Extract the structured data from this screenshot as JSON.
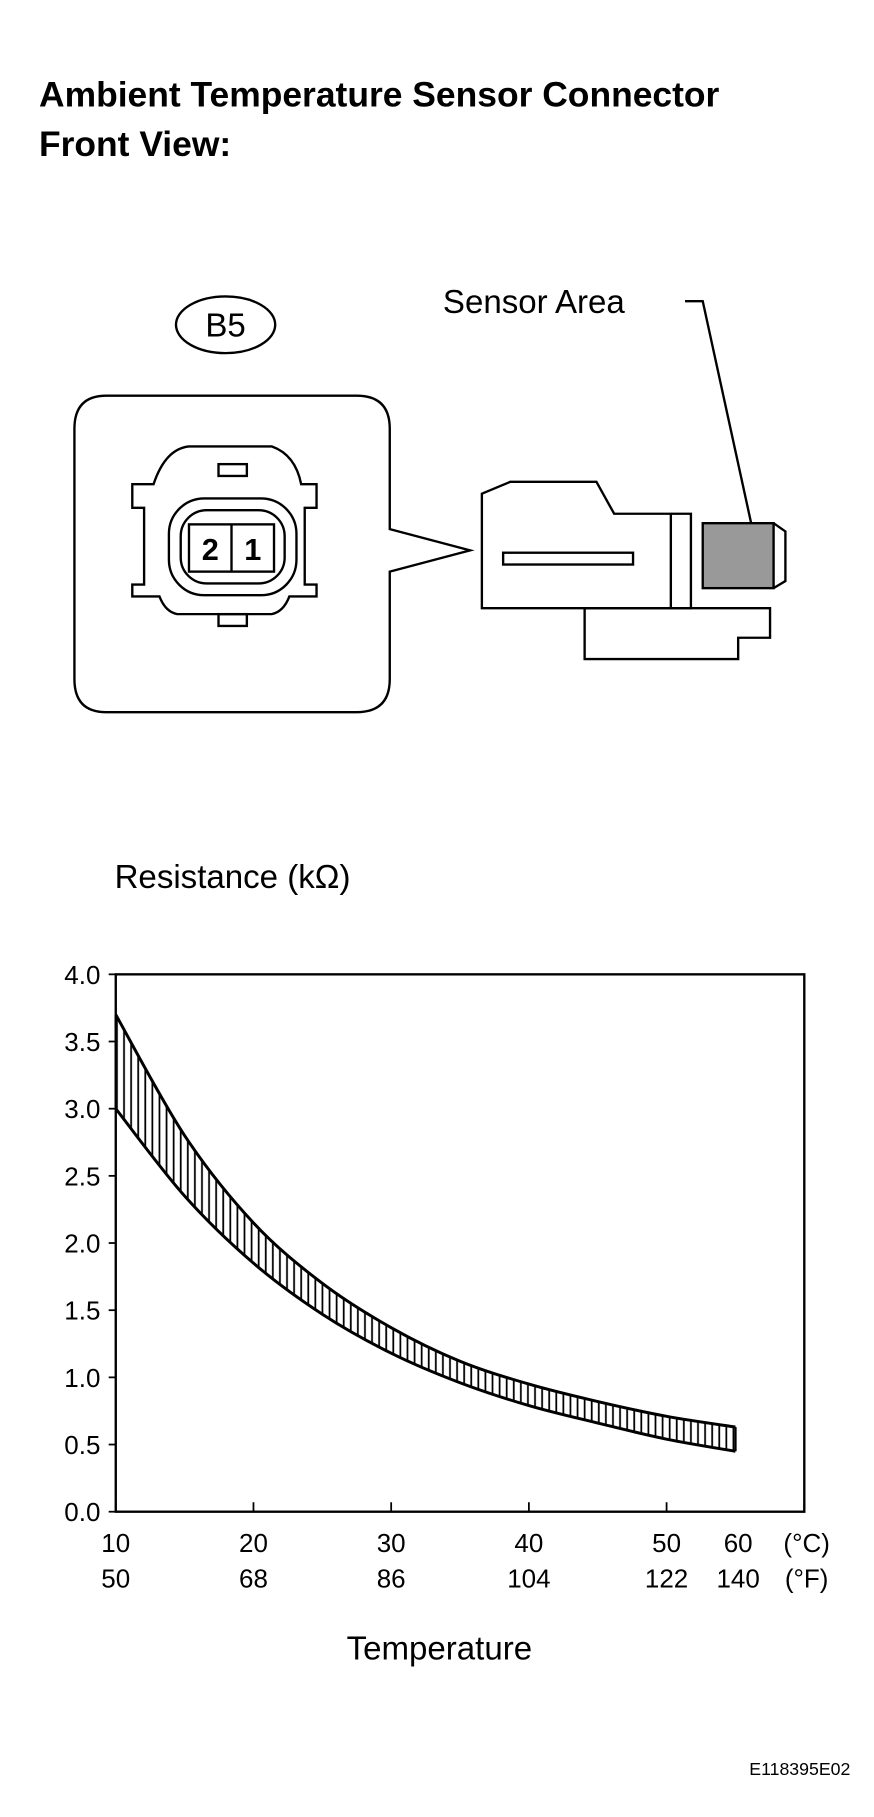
{
  "header": {
    "title_lines": [
      "Ambient Temperature Sensor Connector",
      "Front View:"
    ]
  },
  "connector": {
    "label": "B5",
    "pins": [
      "2",
      "1"
    ],
    "sensor_area_label": "Sensor Area"
  },
  "chart_data": {
    "type": "band",
    "y_label": "Resistance (kΩ)",
    "x_label": "Temperature",
    "x_unit": "(°C)",
    "x2_unit": "(°F)",
    "x": [
      10,
      15,
      20,
      25,
      30,
      35,
      40,
      45,
      50,
      55
    ],
    "series": [
      {
        "name": "upper",
        "color": "#000000",
        "values": [
          3.7,
          2.8,
          2.15,
          1.7,
          1.37,
          1.12,
          0.95,
          0.82,
          0.71,
          0.63
        ]
      },
      {
        "name": "lower",
        "color": "#000000",
        "values": [
          3.0,
          2.35,
          1.85,
          1.47,
          1.18,
          0.96,
          0.79,
          0.66,
          0.54,
          0.45
        ]
      }
    ],
    "xlim": [
      10,
      60
    ],
    "xticks": [
      10,
      20,
      30,
      40,
      50,
      60
    ],
    "x2lim": [
      50,
      140
    ],
    "x2ticks": [
      50,
      68,
      86,
      104,
      122,
      140
    ],
    "ylim": [
      0,
      4
    ],
    "yticks": [
      {
        "value": 0,
        "label": "0.0"
      },
      0.5,
      {
        "value": 1,
        "label": "1.0"
      },
      1.5,
      {
        "value": 2,
        "label": "2.0"
      },
      2.5,
      {
        "value": 3,
        "label": "3.0"
      },
      3.5,
      {
        "value": 4,
        "label": "4.0"
      }
    ],
    "hatched": true
  },
  "footer": {
    "code": "E118395E02"
  }
}
